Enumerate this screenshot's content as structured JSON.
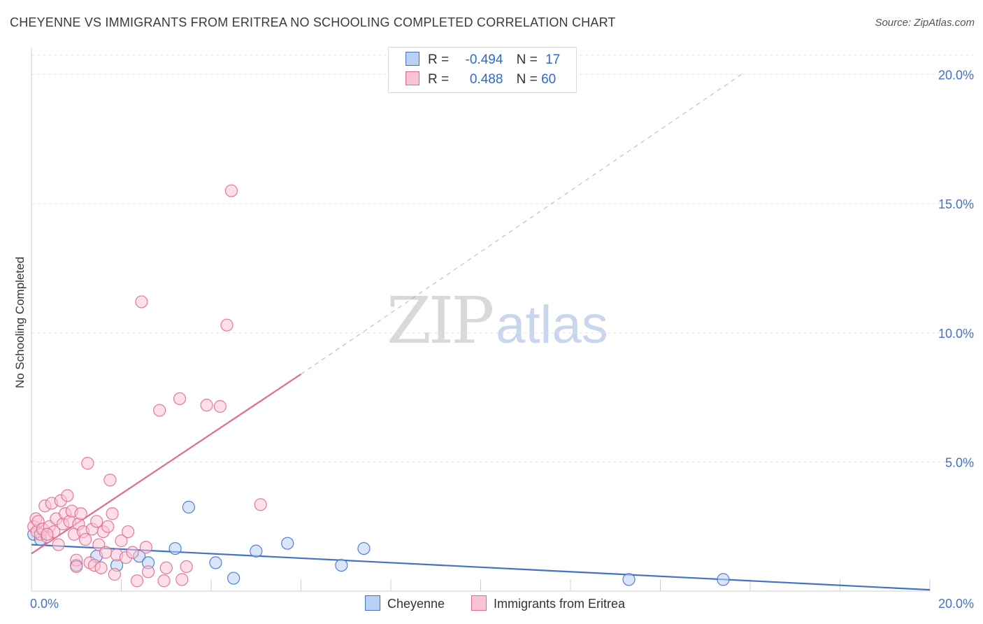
{
  "header": {
    "title": "CHEYENNE VS IMMIGRANTS FROM ERITREA NO SCHOOLING COMPLETED CORRELATION CHART",
    "source": "Source: ZipAtlas.com"
  },
  "watermark": {
    "zip": "ZIP",
    "atlas": "atlas"
  },
  "legend": {
    "rows": [
      {
        "r_label": "R =",
        "r_value": "-0.494",
        "n_label": "N =",
        "n_value": "17",
        "color": "#4472c4",
        "fill": "#b9d1f5"
      },
      {
        "r_label": "R =",
        "r_value": "0.488",
        "n_label": "N = ",
        "n_value": "60",
        "color": "#e06c95",
        "fill": "#f9c4d4"
      }
    ]
  },
  "bottom_legend": {
    "items": [
      {
        "label": "Cheyenne",
        "color": "#4472c4",
        "fill": "#b9d1f5"
      },
      {
        "label": "Immigrants from Eritrea",
        "color": "#e06c95",
        "fill": "#f9c4d4"
      }
    ]
  },
  "chart_data": {
    "type": "scatter",
    "title": "CHEYENNE VS IMMIGRANTS FROM ERITREA NO SCHOOLING COMPLETED CORRELATION CHART",
    "xlabel": "",
    "ylabel": "No Schooling Completed",
    "xlim": [
      0,
      20
    ],
    "ylim": [
      0,
      20.8
    ],
    "x_tick_labels": [
      "0.0%",
      "20.0%"
    ],
    "y_ticks": [
      5,
      10,
      15,
      20
    ],
    "y_tick_labels": [
      "5.0%",
      "10.0%",
      "15.0%",
      "20.0%"
    ],
    "grid": true,
    "series": [
      {
        "name": "Cheyenne",
        "color": "#4472c4",
        "fill": "#b9d1f5",
        "points": [
          [
            0.05,
            2.2
          ],
          [
            1.0,
            1.0
          ],
          [
            1.45,
            1.35
          ],
          [
            1.9,
            1.0
          ],
          [
            2.4,
            1.35
          ],
          [
            2.6,
            1.1
          ],
          [
            3.2,
            1.65
          ],
          [
            3.5,
            3.25
          ],
          [
            4.1,
            1.1
          ],
          [
            4.5,
            0.5
          ],
          [
            5.0,
            1.55
          ],
          [
            5.7,
            1.85
          ],
          [
            6.9,
            1.0
          ],
          [
            7.4,
            1.65
          ],
          [
            13.3,
            0.45
          ],
          [
            15.4,
            0.45
          ],
          [
            0.2,
            2.0
          ]
        ],
        "trend": {
          "x0": 0.0,
          "y0": 1.8,
          "x1": 20.0,
          "y1": 0.05,
          "style": "solid"
        }
      },
      {
        "name": "Immigrants from Eritrea",
        "color": "#e06c95",
        "fill": "#f9c4d4",
        "points": [
          [
            0.05,
            2.5
          ],
          [
            0.1,
            2.8
          ],
          [
            0.12,
            2.3
          ],
          [
            0.15,
            2.7
          ],
          [
            0.2,
            2.2
          ],
          [
            0.25,
            2.4
          ],
          [
            0.3,
            3.3
          ],
          [
            0.35,
            2.1
          ],
          [
            0.4,
            2.5
          ],
          [
            0.45,
            3.4
          ],
          [
            0.5,
            2.3
          ],
          [
            0.55,
            2.8
          ],
          [
            0.6,
            1.8
          ],
          [
            0.65,
            3.5
          ],
          [
            0.7,
            2.6
          ],
          [
            0.75,
            3.0
          ],
          [
            0.8,
            3.7
          ],
          [
            0.85,
            2.7
          ],
          [
            0.9,
            3.1
          ],
          [
            0.95,
            2.2
          ],
          [
            1.0,
            1.2
          ],
          [
            1.05,
            2.6
          ],
          [
            1.1,
            3.0
          ],
          [
            1.15,
            2.3
          ],
          [
            1.2,
            2.0
          ],
          [
            1.25,
            4.95
          ],
          [
            1.3,
            1.1
          ],
          [
            1.35,
            2.4
          ],
          [
            1.4,
            1.0
          ],
          [
            1.45,
            2.7
          ],
          [
            1.5,
            1.8
          ],
          [
            1.55,
            0.9
          ],
          [
            1.6,
            2.3
          ],
          [
            1.65,
            1.5
          ],
          [
            1.7,
            2.5
          ],
          [
            1.75,
            4.3
          ],
          [
            1.8,
            3.0
          ],
          [
            1.85,
            0.65
          ],
          [
            1.9,
            1.4
          ],
          [
            2.0,
            1.95
          ],
          [
            2.1,
            1.3
          ],
          [
            2.15,
            2.3
          ],
          [
            2.25,
            1.5
          ],
          [
            2.35,
            0.4
          ],
          [
            2.45,
            11.2
          ],
          [
            2.55,
            1.7
          ],
          [
            2.6,
            0.75
          ],
          [
            2.85,
            7.0
          ],
          [
            2.95,
            0.4
          ],
          [
            3.0,
            0.9
          ],
          [
            3.3,
            7.45
          ],
          [
            3.35,
            0.45
          ],
          [
            3.45,
            0.95
          ],
          [
            3.9,
            7.2
          ],
          [
            4.2,
            7.15
          ],
          [
            4.35,
            10.3
          ],
          [
            4.45,
            15.5
          ],
          [
            5.1,
            3.35
          ],
          [
            1.0,
            0.95
          ],
          [
            0.35,
            2.2
          ]
        ],
        "trend": {
          "x0": 0.0,
          "y0": 1.45,
          "x1": 6.0,
          "y1": 8.4,
          "style": "solid",
          "ext_x1": 15.8,
          "ext_y1": 20.0,
          "ext_style": "dashed"
        }
      }
    ]
  }
}
